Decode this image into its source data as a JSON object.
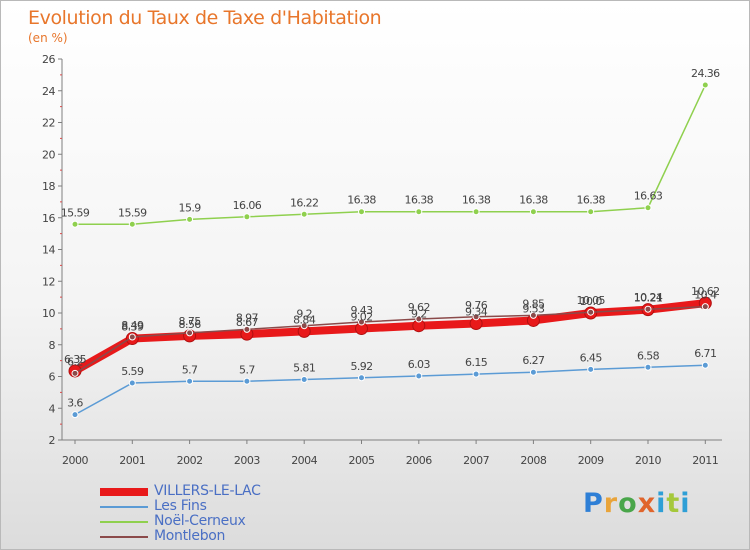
{
  "chart_data": {
    "type": "line",
    "title": "Evolution du Taux de Taxe d'Habitation",
    "ylabel": "(en %)",
    "xlabel": "",
    "categories": [
      "2000",
      "2001",
      "2002",
      "2003",
      "2004",
      "2005",
      "2006",
      "2007",
      "2008",
      "2009",
      "2010",
      "2011"
    ],
    "ylim": [
      2,
      26
    ],
    "yticks": [
      2,
      4,
      6,
      8,
      10,
      12,
      14,
      16,
      18,
      20,
      22,
      24,
      26
    ],
    "grid": false,
    "series": [
      {
        "name": "VILLERS-LE-LAC",
        "color": "#e8191a",
        "values": [
          6.35,
          8.39,
          8.56,
          8.67,
          8.84,
          9.02,
          9.2,
          9.34,
          9.53,
          10.0,
          10.21,
          10.62
        ],
        "labels": [
          "6.35",
          "8.39",
          "8.56",
          "8.67",
          "8.84",
          "9.02",
          "9.2",
          "9.34",
          "9.53",
          "10.0",
          "10.21",
          "10.62"
        ]
      },
      {
        "name": "Les Fins",
        "color": "#5b9bd5",
        "values": [
          3.6,
          5.59,
          5.7,
          5.7,
          5.81,
          5.92,
          6.03,
          6.15,
          6.27,
          6.45,
          6.58,
          6.71
        ],
        "labels": [
          "3.6",
          "5.59",
          "5.7",
          "5.7",
          "5.81",
          "5.92",
          "6.03",
          "6.15",
          "6.27",
          "6.45",
          "6.58",
          "6.71"
        ]
      },
      {
        "name": "Noël-Cerneux",
        "color": "#8fd04e",
        "values": [
          15.59,
          15.59,
          15.9,
          16.06,
          16.22,
          16.38,
          16.38,
          16.38,
          16.38,
          16.38,
          16.63,
          24.36
        ],
        "labels": [
          "15.59",
          "15.59",
          "15.9",
          "16.06",
          "16.22",
          "16.38",
          "16.38",
          "16.38",
          "16.38",
          "16.38",
          "16.63",
          "24.36"
        ]
      },
      {
        "name": "Montlebon",
        "color": "#8b4a4a",
        "values": [
          6.2,
          8.49,
          8.75,
          8.97,
          9.2,
          9.43,
          9.62,
          9.76,
          9.85,
          10.05,
          10.24,
          10.4
        ],
        "labels": [
          "6.2",
          "8.49",
          "8.75",
          "8.97",
          "9.2",
          "9.43",
          "9.62",
          "9.76",
          "9.85",
          "10.05",
          "10.24",
          "10.4"
        ]
      }
    ]
  },
  "legend": [
    {
      "label": "VILLERS-LE-LAC",
      "color": "#e8191a",
      "weight": 8
    },
    {
      "label": "Les Fins",
      "color": "#5b9bd5",
      "weight": 2
    },
    {
      "label": "Noël-Cerneux",
      "color": "#8fd04e",
      "weight": 2
    },
    {
      "label": "Montlebon",
      "color": "#8b4a4a",
      "weight": 2
    }
  ],
  "branding": {
    "letters": [
      "P",
      "r",
      "o",
      "x",
      "i",
      "t",
      "i"
    ]
  }
}
